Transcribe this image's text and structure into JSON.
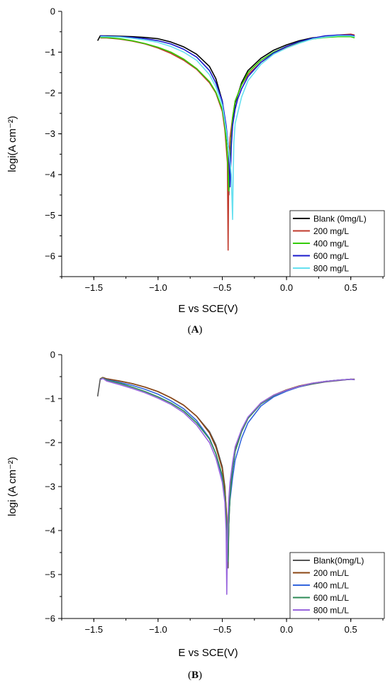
{
  "panels": [
    {
      "label": "(A)",
      "label_letter": "A",
      "chart_data": {
        "type": "line",
        "title": "",
        "xlabel": "E vs SCE(V)",
        "ylabel": "logi(A cm⁻²)",
        "xlim": [
          -1.75,
          0.75
        ],
        "ylim": [
          -6.5,
          0
        ],
        "xticks": [
          -1.5,
          -1.0,
          -0.5,
          0.0,
          0.5
        ],
        "xtick_labels": [
          "−1.5",
          "−1.0",
          "−0.5",
          "0.0",
          "0.5"
        ],
        "yticks": [
          0,
          -1,
          -2,
          -3,
          -4,
          -5,
          -6
        ],
        "ytick_labels": [
          "0",
          "−1",
          "−2",
          "−3",
          "−4",
          "−5",
          "−6"
        ],
        "grid": false,
        "legend_position": "bottom-right",
        "series": [
          {
            "name": "Blank (0mg/L)",
            "color": "#000000",
            "x": [
              -1.47,
              -1.45,
              -1.4,
              -1.3,
              -1.2,
              -1.1,
              -1.0,
              -0.9,
              -0.8,
              -0.7,
              -0.6,
              -0.55,
              -0.5,
              -0.48,
              -0.46,
              -0.45,
              -0.44,
              -0.42,
              -0.4,
              -0.35,
              -0.3,
              -0.2,
              -0.1,
              0.0,
              0.1,
              0.2,
              0.3,
              0.4,
              0.5,
              0.53
            ],
            "y": [
              -0.72,
              -0.6,
              -0.6,
              -0.61,
              -0.62,
              -0.64,
              -0.67,
              -0.75,
              -0.87,
              -1.05,
              -1.35,
              -1.65,
              -2.2,
              -2.7,
              -3.5,
              -4.5,
              -3.6,
              -2.75,
              -2.25,
              -1.75,
              -1.45,
              -1.15,
              -0.95,
              -0.82,
              -0.72,
              -0.65,
              -0.62,
              -0.6,
              -0.57,
              -0.62
            ]
          },
          {
            "name": "200 mg/L",
            "color": "#c0392b",
            "x": [
              -1.45,
              -1.4,
              -1.3,
              -1.2,
              -1.1,
              -1.0,
              -0.9,
              -0.8,
              -0.7,
              -0.6,
              -0.55,
              -0.5,
              -0.48,
              -0.46,
              -0.455,
              -0.45,
              -0.44,
              -0.42,
              -0.4,
              -0.35,
              -0.3,
              -0.2,
              -0.1,
              0.0,
              0.1,
              0.2,
              0.3,
              0.4,
              0.5,
              0.53
            ],
            "y": [
              -0.65,
              -0.65,
              -0.68,
              -0.73,
              -0.8,
              -0.9,
              -1.03,
              -1.2,
              -1.42,
              -1.75,
              -2.0,
              -2.45,
              -2.9,
              -3.7,
              -5.85,
              -3.8,
              -3.1,
              -2.6,
              -2.2,
              -1.8,
              -1.55,
              -1.25,
              -1.03,
              -0.88,
              -0.76,
              -0.68,
              -0.62,
              -0.58,
              -0.56,
              -0.58
            ]
          },
          {
            "name": "400 mg/L",
            "color": "#33cc00",
            "x": [
              -1.45,
              -1.4,
              -1.3,
              -1.2,
              -1.1,
              -1.0,
              -0.9,
              -0.8,
              -0.7,
              -0.6,
              -0.55,
              -0.5,
              -0.48,
              -0.46,
              -0.45,
              -0.44,
              -0.43,
              -0.42,
              -0.4,
              -0.35,
              -0.3,
              -0.2,
              -0.1,
              0.0,
              0.1,
              0.2,
              0.3,
              0.4,
              0.5,
              0.53
            ],
            "y": [
              -0.64,
              -0.64,
              -0.67,
              -0.72,
              -0.79,
              -0.88,
              -1.0,
              -1.17,
              -1.4,
              -1.72,
              -1.98,
              -2.4,
              -2.8,
              -3.5,
              -4.4,
              -3.7,
              -3.1,
              -2.6,
              -2.2,
              -1.8,
              -1.5,
              -1.2,
              -1.0,
              -0.86,
              -0.75,
              -0.68,
              -0.64,
              -0.62,
              -0.62,
              -0.65
            ]
          },
          {
            "name": "600 mg/L",
            "color": "#1a1acc",
            "x": [
              -1.45,
              -1.4,
              -1.3,
              -1.2,
              -1.1,
              -1.0,
              -0.9,
              -0.8,
              -0.7,
              -0.6,
              -0.55,
              -0.5,
              -0.47,
              -0.45,
              -0.44,
              -0.43,
              -0.42,
              -0.4,
              -0.38,
              -0.35,
              -0.3,
              -0.2,
              -0.1,
              0.0,
              0.1,
              0.2,
              0.3,
              0.4,
              0.5,
              0.53
            ],
            "y": [
              -0.6,
              -0.61,
              -0.62,
              -0.64,
              -0.67,
              -0.72,
              -0.8,
              -0.93,
              -1.12,
              -1.45,
              -1.75,
              -2.2,
              -2.8,
              -3.4,
              -4.3,
              -3.3,
              -2.8,
              -2.4,
              -2.15,
              -1.9,
              -1.6,
              -1.25,
              -1.02,
              -0.86,
              -0.74,
              -0.66,
              -0.6,
              -0.58,
              -0.58,
              -0.6
            ]
          },
          {
            "name": "800 mg/L",
            "color": "#66e0f0",
            "x": [
              -1.45,
              -1.4,
              -1.3,
              -1.2,
              -1.1,
              -1.0,
              -0.9,
              -0.8,
              -0.7,
              -0.6,
              -0.55,
              -0.5,
              -0.47,
              -0.45,
              -0.43,
              -0.42,
              -0.415,
              -0.41,
              -0.4,
              -0.35,
              -0.3,
              -0.2,
              -0.1,
              0.0,
              0.1,
              0.2,
              0.3,
              0.4,
              0.5,
              0.53
            ],
            "y": [
              -0.62,
              -0.62,
              -0.63,
              -0.66,
              -0.7,
              -0.76,
              -0.86,
              -1.0,
              -1.2,
              -1.55,
              -1.85,
              -2.3,
              -2.9,
              -3.4,
              -4.0,
              -5.1,
              -4.0,
              -3.2,
              -2.75,
              -2.1,
              -1.7,
              -1.3,
              -1.05,
              -0.9,
              -0.78,
              -0.68,
              -0.63,
              -0.6,
              -0.6,
              -0.62
            ]
          }
        ]
      }
    },
    {
      "label": "(B)",
      "label_letter": "B",
      "chart_data": {
        "type": "line",
        "title": "",
        "xlabel": "E vs SCE(V)",
        "ylabel": "logi (A cm⁻²)",
        "xlim": [
          -1.75,
          0.75
        ],
        "ylim": [
          -6,
          0
        ],
        "xticks": [
          -1.5,
          -1.0,
          -0.5,
          0.0,
          0.5
        ],
        "xtick_labels": [
          "−1.5",
          "−1.0",
          "−0.5",
          "0.0",
          "0.5"
        ],
        "yticks": [
          0,
          -1,
          -2,
          -3,
          -4,
          -5,
          -6
        ],
        "ytick_labels": [
          "0",
          "−1",
          "−2",
          "−3",
          "−4",
          "−5",
          "−6"
        ],
        "grid": false,
        "legend_position": "bottom-right",
        "series": [
          {
            "name": "Blank(0mg/L)",
            "color": "#555555",
            "x": [
              -1.47,
              -1.45,
              -1.43,
              -1.4,
              -1.3,
              -1.2,
              -1.1,
              -1.0,
              -0.9,
              -0.8,
              -0.7,
              -0.6,
              -0.55,
              -0.5,
              -0.48,
              -0.465,
              -0.455,
              -0.45,
              -0.44,
              -0.42,
              -0.4,
              -0.35,
              -0.3,
              -0.2,
              -0.1,
              0.0,
              0.1,
              0.2,
              0.3,
              0.4,
              0.5,
              0.53
            ],
            "y": [
              -0.95,
              -0.55,
              -0.52,
              -0.55,
              -0.6,
              -0.66,
              -0.74,
              -0.84,
              -0.98,
              -1.15,
              -1.4,
              -1.75,
              -2.05,
              -2.55,
              -3.0,
              -3.8,
              -4.85,
              -3.9,
              -3.2,
              -2.6,
              -2.2,
              -1.75,
              -1.45,
              -1.12,
              -0.94,
              -0.82,
              -0.73,
              -0.67,
              -0.62,
              -0.59,
              -0.56,
              -0.56
            ]
          },
          {
            "name": "200 mL/L",
            "color": "#8b4513",
            "x": [
              -1.45,
              -1.43,
              -1.4,
              -1.3,
              -1.2,
              -1.1,
              -1.0,
              -0.9,
              -0.8,
              -0.7,
              -0.6,
              -0.55,
              -0.5,
              -0.48,
              -0.465,
              -0.455,
              -0.45,
              -0.44,
              -0.42,
              -0.4,
              -0.35,
              -0.3,
              -0.2,
              -0.1,
              0.0,
              0.1,
              0.2,
              0.3,
              0.4,
              0.5,
              0.53
            ],
            "y": [
              -0.55,
              -0.52,
              -0.55,
              -0.6,
              -0.66,
              -0.74,
              -0.84,
              -0.98,
              -1.15,
              -1.4,
              -1.78,
              -2.1,
              -2.6,
              -3.05,
              -3.7,
              -4.6,
              -3.8,
              -3.1,
              -2.55,
              -2.15,
              -1.72,
              -1.43,
              -1.1,
              -0.92,
              -0.8,
              -0.71,
              -0.65,
              -0.61,
              -0.58,
              -0.56,
              -0.56
            ]
          },
          {
            "name": "400 mL/L",
            "color": "#3366dd",
            "x": [
              -1.45,
              -1.43,
              -1.4,
              -1.3,
              -1.2,
              -1.1,
              -1.0,
              -0.9,
              -0.8,
              -0.7,
              -0.6,
              -0.55,
              -0.5,
              -0.48,
              -0.47,
              -0.46,
              -0.45,
              -0.44,
              -0.42,
              -0.4,
              -0.35,
              -0.3,
              -0.2,
              -0.1,
              0.0,
              0.1,
              0.2,
              0.3,
              0.4,
              0.5,
              0.53
            ],
            "y": [
              -0.57,
              -0.54,
              -0.57,
              -0.63,
              -0.7,
              -0.79,
              -0.9,
              -1.05,
              -1.23,
              -1.5,
              -1.9,
              -2.25,
              -2.8,
              -3.3,
              -3.8,
              -4.3,
              -3.7,
              -3.3,
              -2.8,
              -2.4,
              -1.9,
              -1.55,
              -1.17,
              -0.96,
              -0.83,
              -0.73,
              -0.66,
              -0.61,
              -0.58,
              -0.56,
              -0.57
            ]
          },
          {
            "name": "600 mL/L",
            "color": "#2e8b57",
            "x": [
              -1.45,
              -1.43,
              -1.4,
              -1.3,
              -1.2,
              -1.1,
              -1.0,
              -0.9,
              -0.8,
              -0.7,
              -0.6,
              -0.55,
              -0.5,
              -0.48,
              -0.465,
              -0.455,
              -0.45,
              -0.44,
              -0.42,
              -0.4,
              -0.35,
              -0.3,
              -0.2,
              -0.1,
              0.0,
              0.1,
              0.2,
              0.3,
              0.4,
              0.5,
              0.53
            ],
            "y": [
              -0.56,
              -0.53,
              -0.58,
              -0.65,
              -0.74,
              -0.84,
              -0.96,
              -1.1,
              -1.28,
              -1.55,
              -1.92,
              -2.25,
              -2.75,
              -3.2,
              -3.9,
              -4.7,
              -3.9,
              -3.2,
              -2.6,
              -2.2,
              -1.75,
              -1.45,
              -1.12,
              -0.93,
              -0.81,
              -0.72,
              -0.66,
              -0.61,
              -0.58,
              -0.56,
              -0.57
            ]
          },
          {
            "name": "800 mL/L",
            "color": "#9966dd",
            "x": [
              -1.45,
              -1.43,
              -1.4,
              -1.3,
              -1.2,
              -1.1,
              -1.0,
              -0.9,
              -0.8,
              -0.7,
              -0.6,
              -0.55,
              -0.5,
              -0.48,
              -0.47,
              -0.465,
              -0.46,
              -0.455,
              -0.45,
              -0.44,
              -0.42,
              -0.4,
              -0.35,
              -0.3,
              -0.2,
              -0.1,
              0.0,
              0.1,
              0.2,
              0.3,
              0.4,
              0.5,
              0.53
            ],
            "y": [
              -0.57,
              -0.54,
              -0.6,
              -0.68,
              -0.77,
              -0.87,
              -0.99,
              -1.13,
              -1.32,
              -1.6,
              -2.0,
              -2.35,
              -2.9,
              -3.35,
              -4.0,
              -5.45,
              -4.3,
              -3.7,
              -3.3,
              -2.9,
              -2.45,
              -2.1,
              -1.7,
              -1.42,
              -1.1,
              -0.92,
              -0.81,
              -0.72,
              -0.65,
              -0.61,
              -0.58,
              -0.56,
              -0.57
            ]
          }
        ]
      }
    }
  ]
}
